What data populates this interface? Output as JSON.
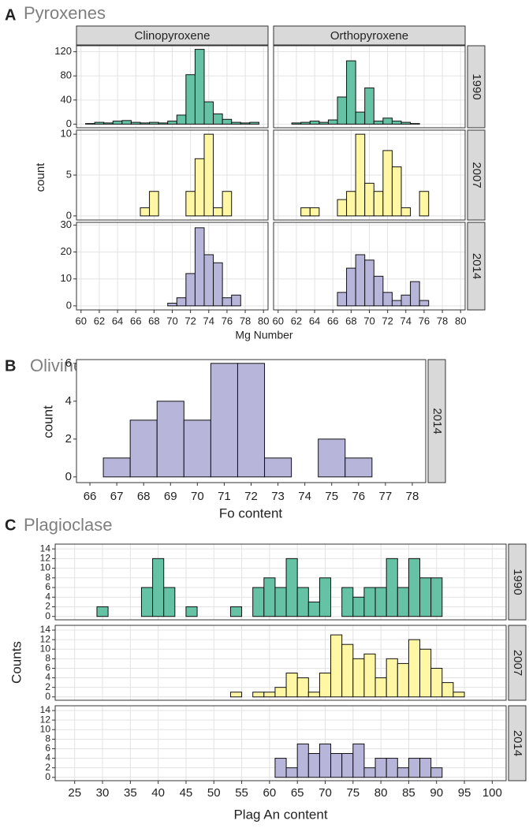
{
  "chart_data": [
    {
      "type": "histogram",
      "panel_label": "A",
      "title": "Pyroxenes",
      "xlabel": "Mg Number",
      "ylabel": "count",
      "columns": [
        "Clinopyroxene",
        "Orthopyroxene"
      ],
      "bins": [
        60.5,
        61.5,
        62.5,
        63.5,
        64.5,
        65.5,
        66.5,
        67.5,
        68.5,
        69.5,
        70.5,
        71.5,
        72.5,
        73.5,
        74.5,
        75.5,
        76.5,
        77.5,
        78.5,
        79.5
      ],
      "xlim": [
        59.5,
        80.5
      ],
      "xticks": [
        60,
        62,
        64,
        66,
        68,
        70,
        72,
        74,
        76,
        78,
        80
      ],
      "grid": true,
      "rows": [
        {
          "name": "1990",
          "color": "#66c2a5",
          "ylim": [
            -6,
            130
          ],
          "yticks": [
            0,
            40,
            80,
            120
          ],
          "values": [
            [
              1,
              3,
              2,
              5,
              6,
              3,
              2,
              3,
              2,
              5,
              15,
              82,
              124,
              37,
              17,
              8,
              3,
              2,
              3
            ],
            [
              0,
              2,
              3,
              5,
              3,
              7,
              45,
              105,
              20,
              60,
              5,
              10,
              5,
              3,
              1,
              0,
              0,
              0,
              0
            ]
          ]
        },
        {
          "name": "2007",
          "color": "#fff7a3",
          "ylim": [
            -0.5,
            10.5
          ],
          "yticks": [
            0,
            5,
            10
          ],
          "values": [
            [
              0,
              0,
              0,
              0,
              0,
              0,
              1,
              3,
              0,
              0,
              0,
              3,
              7,
              10,
              1,
              3,
              0,
              0,
              0
            ],
            [
              0,
              0,
              1,
              1,
              0,
              0,
              2,
              3,
              10,
              4,
              3,
              8,
              6,
              1,
              0,
              3,
              0,
              0,
              0
            ]
          ]
        },
        {
          "name": "2014",
          "color": "#b8b5da",
          "ylim": [
            -1.5,
            31
          ],
          "yticks": [
            0,
            10,
            20,
            30
          ],
          "values": [
            [
              0,
              0,
              0,
              0,
              0,
              0,
              0,
              0,
              0,
              1,
              3,
              12,
              29,
              19,
              16,
              3,
              4,
              0,
              0
            ],
            [
              0,
              0,
              0,
              0,
              0,
              0,
              5,
              14,
              19,
              17,
              11,
              5,
              2,
              4,
              9,
              2,
              0,
              0,
              0
            ]
          ]
        }
      ]
    },
    {
      "type": "histogram",
      "panel_label": "B",
      "title": "Olivine",
      "xlabel": "Fo content",
      "ylabel": "count",
      "bins": [
        66.5,
        67.5,
        68.5,
        69.5,
        70.5,
        71.5,
        72.5,
        73.5,
        74.5,
        75.5,
        76.5,
        77.5
      ],
      "xlim": [
        65.5,
        78.5
      ],
      "xticks": [
        66,
        67,
        68,
        69,
        70,
        71,
        72,
        73,
        74,
        75,
        76,
        77,
        78
      ],
      "grid": false,
      "rows": [
        {
          "name": "2014",
          "color": "#b8b5da",
          "ylim": [
            -0.3,
            6.2
          ],
          "yticks": [
            0,
            2,
            4,
            6
          ],
          "values": [
            1,
            3,
            4,
            3,
            6,
            6,
            1,
            0,
            2,
            1,
            0
          ]
        }
      ]
    },
    {
      "type": "histogram",
      "panel_label": "C",
      "title": "Plagioclase",
      "xlabel": "Plag An content",
      "ylabel": "Counts",
      "bins": [
        25,
        27,
        29,
        31,
        33,
        35,
        37,
        39,
        41,
        43,
        45,
        47,
        49,
        51,
        53,
        55,
        57,
        59,
        61,
        63,
        65,
        67,
        69,
        71,
        73,
        75,
        77,
        79,
        81,
        83,
        85,
        87,
        89,
        91,
        93,
        95,
        97,
        99
      ],
      "xlim": [
        21.5,
        102.5
      ],
      "xticks": [
        25,
        30,
        35,
        40,
        45,
        50,
        55,
        60,
        65,
        70,
        75,
        80,
        85,
        90,
        95,
        100
      ],
      "grid": true,
      "rows": [
        {
          "name": "1990",
          "color": "#66c2a5",
          "ylim": [
            -0.7,
            15
          ],
          "yticks": [
            0,
            2,
            4,
            6,
            8,
            10,
            12,
            14
          ],
          "values": [
            0,
            0,
            2,
            0,
            0,
            0,
            6,
            12,
            6,
            0,
            2,
            0,
            0,
            0,
            2,
            0,
            6,
            8,
            6,
            12,
            6,
            3,
            8,
            0,
            6,
            4,
            6,
            6,
            12,
            6,
            12,
            8,
            8,
            0,
            0,
            0,
            0
          ]
        },
        {
          "name": "2007",
          "color": "#fff7a3",
          "ylim": [
            -0.7,
            15
          ],
          "yticks": [
            0,
            2,
            4,
            6,
            8,
            10,
            12,
            14
          ],
          "values": [
            0,
            0,
            0,
            0,
            0,
            0,
            0,
            0,
            0,
            0,
            0,
            0,
            0,
            0,
            1,
            0,
            1,
            1,
            2,
            5,
            4,
            1,
            5,
            13,
            11,
            8,
            9,
            4,
            8,
            7,
            12,
            10,
            6,
            3,
            1,
            0,
            0
          ]
        },
        {
          "name": "2014",
          "color": "#b8b5da",
          "ylim": [
            -0.7,
            15
          ],
          "yticks": [
            0,
            2,
            4,
            6,
            8,
            10,
            12,
            14
          ],
          "values": [
            0,
            0,
            0,
            0,
            0,
            0,
            0,
            0,
            0,
            0,
            0,
            0,
            0,
            0,
            0,
            0,
            0,
            0,
            4,
            2,
            7,
            5,
            7,
            5,
            5,
            7,
            2,
            4,
            4,
            2,
            4,
            4,
            2,
            0,
            0,
            0,
            0
          ]
        }
      ]
    }
  ]
}
